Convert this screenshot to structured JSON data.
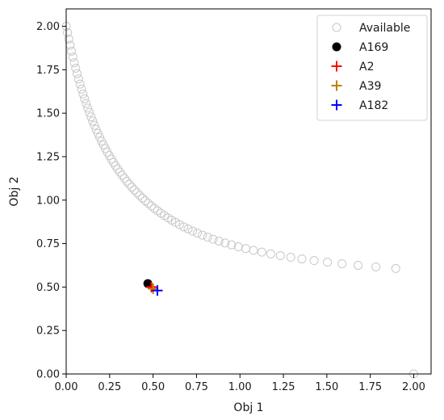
{
  "chart_data": {
    "type": "scatter",
    "xlabel": "Obj 1",
    "ylabel": "Obj 2",
    "xlim": [
      0.0,
      2.1
    ],
    "ylim": [
      0.0,
      2.1
    ],
    "xticks": [
      "0.00",
      "0.25",
      "0.50",
      "0.75",
      "1.00",
      "1.25",
      "1.50",
      "1.75",
      "2.00"
    ],
    "yticks": [
      "0.00",
      "0.25",
      "0.50",
      "0.75",
      "1.00",
      "1.25",
      "1.50",
      "1.75",
      "2.00"
    ],
    "grid": false,
    "legend_position": "top-right",
    "series": [
      {
        "name": "Available",
        "marker": "hollow-circle",
        "color": "#c8c8c8",
        "x": [
          0.0,
          0.0075,
          0.0151,
          0.0227,
          0.0305,
          0.0384,
          0.0464,
          0.0545,
          0.0627,
          0.0711,
          0.0796,
          0.0882,
          0.0969,
          0.1058,
          0.1148,
          0.124,
          0.1334,
          0.1429,
          0.1525,
          0.1624,
          0.1724,
          0.1826,
          0.193,
          0.2036,
          0.2143,
          0.2253,
          0.2366,
          0.248,
          0.2597,
          0.2716,
          0.2838,
          0.2963,
          0.309,
          0.3221,
          0.3354,
          0.3491,
          0.3631,
          0.3774,
          0.3922,
          0.4073,
          0.4228,
          0.4388,
          0.4552,
          0.4721,
          0.4895,
          0.5075,
          0.5261,
          0.5453,
          0.5652,
          0.5858,
          0.6071,
          0.6293,
          0.6524,
          0.6765,
          0.7015,
          0.7277,
          0.7551,
          0.7838,
          0.8139,
          0.8456,
          0.879,
          0.9142,
          0.9515,
          0.9911,
          1.0331,
          1.078,
          1.1259,
          1.1773,
          1.2325,
          1.2921,
          1.3566,
          1.4268,
          1.5034,
          1.5874,
          1.6799,
          1.7825,
          1.8967,
          2.0
        ],
        "y": [
          2.0,
          1.9628,
          1.9266,
          1.8912,
          1.8568,
          1.8232,
          1.7905,
          1.7586,
          1.7275,
          1.6971,
          1.6675,
          1.6386,
          1.6104,
          1.5828,
          1.5559,
          1.5296,
          1.5039,
          1.4788,
          1.4543,
          1.4303,
          1.4068,
          1.3838,
          1.3614,
          1.3394,
          1.3178,
          1.2967,
          1.2761,
          1.2559,
          1.2361,
          1.2167,
          1.1977,
          1.1791,
          1.1608,
          1.1429,
          1.1253,
          1.1081,
          1.0913,
          1.0747,
          1.0584,
          1.0425,
          1.0268,
          1.0114,
          0.9963,
          0.9815,
          0.9669,
          0.9526,
          0.9385,
          0.9247,
          0.9111,
          0.8977,
          0.8846,
          0.8716,
          0.8589,
          0.8464,
          0.8341,
          0.822,
          0.8101,
          0.7984,
          0.7868,
          0.7755,
          0.7643,
          0.7533,
          0.7425,
          0.7318,
          0.7213,
          0.711,
          0.7008,
          0.6908,
          0.6809,
          0.6712,
          0.6616,
          0.6521,
          0.6428,
          0.6336,
          0.6246,
          0.6157,
          0.6069,
          0.0
        ]
      },
      {
        "name": "A169",
        "marker": "filled-circle",
        "color": "#000000",
        "x": [
          0.47
        ],
        "y": [
          0.52
        ]
      },
      {
        "name": "A2",
        "marker": "plus",
        "color": "#ff0000",
        "x": [
          0.49
        ],
        "y": [
          0.5
        ]
      },
      {
        "name": "A39",
        "marker": "plus",
        "color": "#bf7f00",
        "x": [
          0.5
        ],
        "y": [
          0.49
        ]
      },
      {
        "name": "A182",
        "marker": "plus",
        "color": "#0000ff",
        "x": [
          0.525
        ],
        "y": [
          0.48
        ]
      }
    ]
  }
}
